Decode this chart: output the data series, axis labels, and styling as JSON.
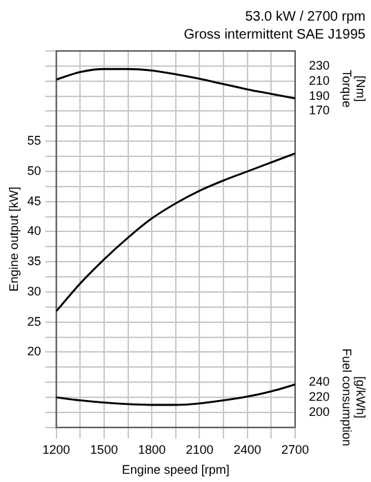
{
  "chart_data": {
    "type": "line",
    "title": "53.0 kW / 2700 rpm",
    "subtitle": "Gross intermittent SAE J1995",
    "xlabel": "Engine speed [rpm]",
    "ylabel": "Engine output [kW]",
    "y2label": "Torque [Nm]",
    "y3label": "Fuel consumption [g/kWh]",
    "x": [
      1200,
      1350,
      1500,
      1650,
      1800,
      1950,
      2100,
      2250,
      2400,
      2550,
      2700
    ],
    "series": [
      {
        "color": "#000000",
        "values": [
          26.8,
          31.4,
          35.4,
          39.0,
          42.2,
          44.7,
          46.8,
          48.5,
          50.0,
          51.5,
          53.0
        ]
      },
      {
        "color": "#000000",
        "axis": "y2",
        "values": [
          212,
          222,
          226,
          226,
          224,
          219,
          213,
          206,
          199,
          193,
          187
        ]
      },
      {
        "color": "#000000",
        "axis": "y3",
        "values": [
          220,
          216,
          213,
          211,
          210,
          210,
          212,
          216,
          221,
          228,
          237
        ]
      }
    ],
    "xlim": [
      1200,
      2700
    ],
    "xticks": [
      1200,
      {
        "value": 1350,
        "label": null
      },
      1500,
      {
        "value": 1650,
        "label": null
      },
      1800,
      {
        "value": 1950,
        "label": null
      },
      2100,
      {
        "value": 2250,
        "label": null
      },
      2400,
      {
        "value": 2550,
        "label": null
      },
      2700
    ],
    "ylim": [
      7.5,
      70
    ],
    "yticks": [
      {
        "value": 7.5,
        "label": null
      },
      {
        "value": 10,
        "label": null
      },
      {
        "value": 12.5,
        "label": null
      },
      {
        "value": 15,
        "label": null
      },
      {
        "value": 17.5,
        "label": null
      },
      20,
      {
        "value": 22.5,
        "label": null
      },
      25,
      {
        "value": 27.5,
        "label": null
      },
      30,
      {
        "value": 32.5,
        "label": null
      },
      35,
      {
        "value": 37.5,
        "label": null
      },
      40,
      {
        "value": 42.5,
        "label": null
      },
      45,
      {
        "value": 47.5,
        "label": null
      },
      50,
      {
        "value": 52.5,
        "label": null
      },
      55,
      {
        "value": 57.5,
        "label": null
      },
      {
        "value": 60,
        "label": null
      },
      {
        "value": 62.5,
        "label": null
      },
      {
        "value": 65,
        "label": null
      },
      {
        "value": 67.5,
        "label": null
      },
      {
        "value": 70,
        "label": null
      }
    ],
    "y2lim": [
      -250,
      250
    ],
    "y2ticks": [
      170,
      190,
      210,
      230
    ],
    "y3lim": [
      180,
      680
    ],
    "y3ticks": [
      200,
      220,
      240
    ],
    "grid": true,
    "legend": false,
    "marker": "none",
    "line_style": "solid"
  }
}
